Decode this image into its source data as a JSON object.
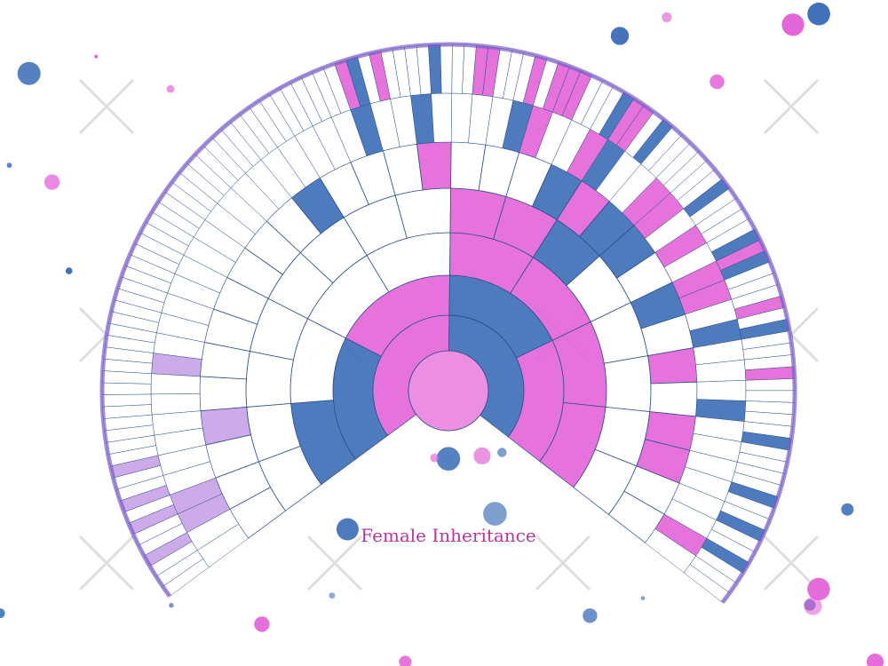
{
  "title": "Female Inheritance"
}
